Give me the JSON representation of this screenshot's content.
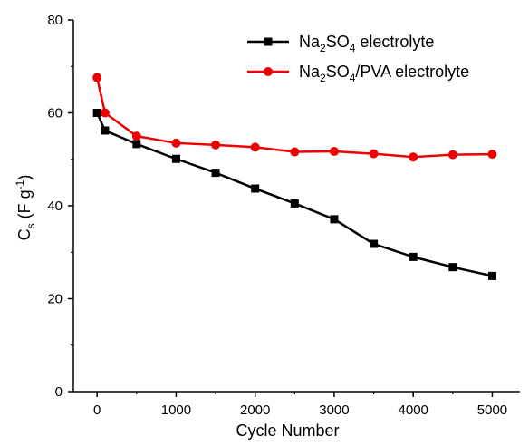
{
  "chart_data": {
    "type": "line",
    "xlabel": "Cycle Number",
    "ylabel": {
      "main": "C",
      "sub": "s",
      "unit_prefix": " (F g",
      "unit_sup": "-1",
      "unit_suffix": ")"
    },
    "xlim": [
      -300,
      5350
    ],
    "ylim": [
      0,
      80
    ],
    "xticks": [
      0,
      1000,
      2000,
      3000,
      4000,
      5000
    ],
    "yticks": [
      0,
      20,
      40,
      60,
      80
    ],
    "grid": false,
    "legend_position": "top-right",
    "series": [
      {
        "name": "Na2SO4 electrolyte",
        "legend_parts": [
          {
            "t": "Na"
          },
          {
            "t": "2",
            "sub": true
          },
          {
            "t": "SO"
          },
          {
            "t": "4",
            "sub": true
          },
          {
            "t": " electrolyte"
          }
        ],
        "color": "#000000",
        "marker": "square",
        "x": [
          0,
          100,
          500,
          1000,
          1500,
          2000,
          2500,
          3000,
          3500,
          4000,
          4500,
          5000
        ],
        "y": [
          60,
          56.2,
          53.3,
          50.1,
          47.1,
          43.7,
          40.5,
          37.1,
          31.8,
          29.0,
          26.8,
          24.9
        ]
      },
      {
        "name": "Na2SO4/PVA electrolyte",
        "legend_parts": [
          {
            "t": "Na"
          },
          {
            "t": "2",
            "sub": true
          },
          {
            "t": "SO"
          },
          {
            "t": "4",
            "sub": true
          },
          {
            "t": "/PVA electrolyte"
          }
        ],
        "color": "#ee0000",
        "marker": "circle",
        "x": [
          0,
          100,
          500,
          1000,
          1500,
          2000,
          2500,
          3000,
          3500,
          4000,
          4500,
          5000
        ],
        "y": [
          67.6,
          60.0,
          55.0,
          53.5,
          53.1,
          52.6,
          51.6,
          51.7,
          51.2,
          50.5,
          51.0,
          51.1
        ]
      }
    ]
  }
}
